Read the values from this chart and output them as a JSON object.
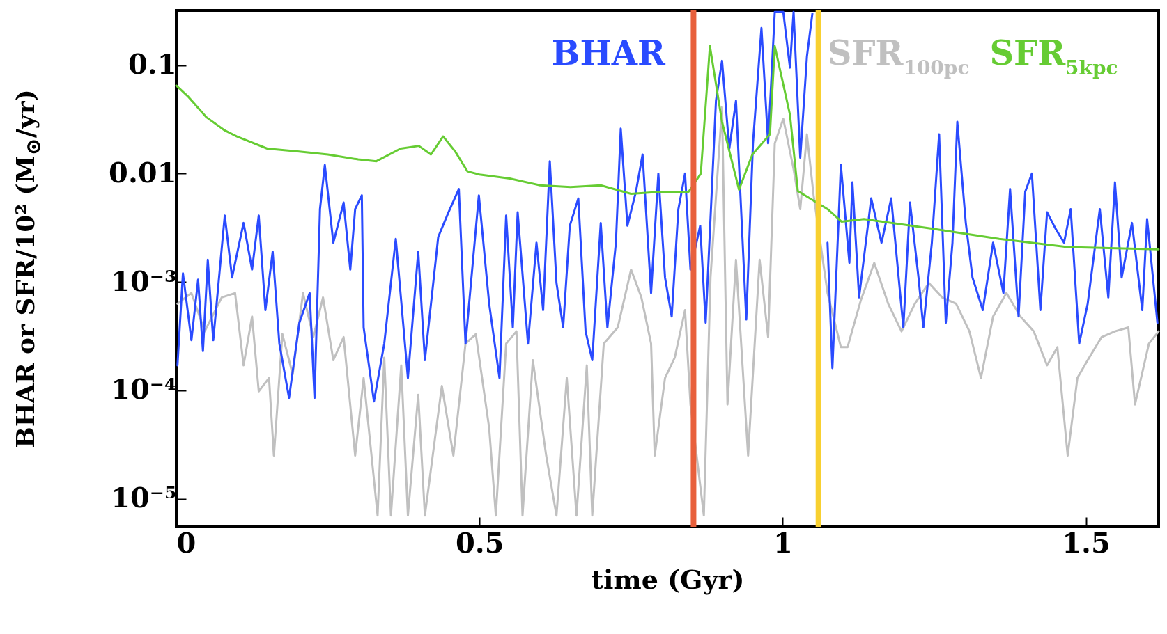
{
  "chart_data": {
    "type": "line",
    "xlabel": "time (Gyr)",
    "ylabel": "BHAR or SFR/10² (M$_{⊙}$/yr)",
    "log": "y",
    "xlim": [
      0,
      1.62
    ],
    "ylim": [
      5.5e-06,
      0.32
    ],
    "xticks": [
      0,
      0.5,
      1,
      1.5
    ],
    "yticks": [
      0.1,
      0.01,
      {
        "value": 0.001,
        "label": "10⁻³"
      },
      {
        "value": 0.0001,
        "label": "10⁻⁴"
      },
      {
        "value": 1e-05,
        "label": "10⁻⁵"
      }
    ],
    "series": [
      {
        "name": "SFR$_{100pc}$",
        "color": "#c0c0c0",
        "x": [
          0.002,
          0.025,
          0.047,
          0.075,
          0.097,
          0.111,
          0.125,
          0.136,
          0.153,
          0.161,
          0.175,
          0.192,
          0.209,
          0.226,
          0.242,
          0.259,
          0.276,
          0.295,
          0.309,
          0.332,
          0.343,
          0.354,
          0.371,
          0.382,
          0.399,
          0.41,
          0.438,
          0.457,
          0.477,
          0.494,
          0.516,
          0.527,
          0.544,
          0.561,
          0.571,
          0.588,
          0.61,
          0.627,
          0.644,
          0.66,
          0.677,
          0.686,
          0.705,
          0.728,
          0.75,
          0.767,
          0.783,
          0.789,
          0.806,
          0.822,
          0.839,
          0.848,
          0.87,
          0.881,
          0.9,
          0.909,
          0.923,
          0.943,
          0.962,
          0.976,
          0.987,
          1.001,
          1.018,
          1.029,
          1.04,
          1.051,
          1.074,
          1.096,
          1.107,
          1.129,
          1.151,
          1.174,
          1.196,
          1.218,
          1.241,
          1.263,
          1.286,
          1.308,
          1.327,
          1.347,
          1.369,
          1.392,
          1.414,
          1.436,
          1.453,
          1.47,
          1.486,
          1.503,
          1.526,
          1.548,
          1.57,
          1.581,
          1.604,
          1.62
        ],
        "values": [
          0.00063,
          0.00079,
          0.00035,
          0.00072,
          0.00079,
          0.00017,
          0.00048,
          9.8e-05,
          0.00013,
          2.5e-05,
          0.00033,
          0.00014,
          0.00079,
          0.00031,
          0.00072,
          0.00019,
          0.00031,
          2.5e-05,
          0.00013,
          7e-06,
          0.0002,
          7e-06,
          0.00017,
          7e-06,
          9.1e-05,
          7e-06,
          0.00011,
          2.5e-05,
          0.00027,
          0.00033,
          4.5e-05,
          7e-06,
          0.00027,
          0.00035,
          7e-06,
          0.00019,
          2.5e-05,
          7e-06,
          0.00013,
          7e-06,
          0.00017,
          7e-06,
          0.00027,
          0.00038,
          0.0013,
          0.00072,
          0.00027,
          2.5e-05,
          0.00013,
          0.0002,
          0.00055,
          7.4e-05,
          7e-06,
          0.0011,
          0.041,
          7.4e-05,
          0.0016,
          2.5e-05,
          0.0016,
          0.00031,
          0.019,
          0.032,
          0.011,
          0.0047,
          0.023,
          0.0063,
          0.00079,
          0.00025,
          0.00025,
          0.00068,
          0.0015,
          0.00063,
          0.00035,
          0.00063,
          0.00098,
          0.00072,
          0.00063,
          0.00035,
          0.00013,
          0.00048,
          0.00079,
          0.00048,
          0.00035,
          0.00017,
          0.00025,
          2.5e-05,
          0.00013,
          0.00019,
          0.00031,
          0.00035,
          0.00038,
          7.4e-05,
          0.00027,
          0.00035
        ]
      },
      {
        "name": "BHAR",
        "color": "#2a4bff",
        "x": [
          0.002,
          0.011,
          0.025,
          0.036,
          0.044,
          0.052,
          0.061,
          0.08,
          0.092,
          0.111,
          0.125,
          0.136,
          0.147,
          0.159,
          0.17,
          0.186,
          0.203,
          0.22,
          0.228,
          0.237,
          0.245,
          0.259,
          0.276,
          0.287,
          0.295,
          0.306,
          0.309,
          0.326,
          0.343,
          0.362,
          0.382,
          0.399,
          0.41,
          0.432,
          0.449,
          0.466,
          0.477,
          0.499,
          0.516,
          0.533,
          0.544,
          0.555,
          0.563,
          0.58,
          0.594,
          0.605,
          0.616,
          0.627,
          0.638,
          0.649,
          0.663,
          0.675,
          0.686,
          0.7,
          0.711,
          0.725,
          0.733,
          0.744,
          0.758,
          0.769,
          0.783,
          0.795,
          0.806,
          0.817,
          0.828,
          0.839,
          0.848,
          0.864,
          0.873,
          0.89,
          0.9,
          0.912,
          0.923,
          0.94,
          0.951,
          0.965,
          0.976,
          0.987,
          1.001,
          1.012,
          1.018,
          1.029,
          1.04,
          1.049,
          1.057,
          1.074,
          1.082,
          1.096,
          1.11,
          1.115,
          1.126,
          1.146,
          1.163,
          1.179,
          1.199,
          1.21,
          1.224,
          1.232,
          1.246,
          1.258,
          1.269,
          1.28,
          1.288,
          1.302,
          1.313,
          1.33,
          1.347,
          1.364,
          1.375,
          1.389,
          1.4,
          1.411,
          1.425,
          1.436,
          1.45,
          1.464,
          1.475,
          1.489,
          1.503,
          1.523,
          1.537,
          1.548,
          1.559,
          1.576,
          1.593,
          1.601,
          1.618
        ],
        "values": [
          0.00017,
          0.0012,
          0.00029,
          0.00105,
          0.00023,
          0.0016,
          0.00029,
          0.0041,
          0.0011,
          0.0035,
          0.0013,
          0.0041,
          0.00055,
          0.0019,
          0.00027,
          8.5e-05,
          0.00042,
          0.00079,
          8.5e-05,
          0.0047,
          0.012,
          0.0023,
          0.0054,
          0.0013,
          0.0047,
          0.0063,
          0.00038,
          7.9e-05,
          0.00027,
          0.0025,
          0.00013,
          0.0019,
          0.00019,
          0.0026,
          0.0044,
          0.0072,
          0.00027,
          0.0063,
          0.00063,
          0.00013,
          0.0041,
          0.00038,
          0.0044,
          0.00027,
          0.0023,
          0.00055,
          0.013,
          0.00098,
          0.00038,
          0.0033,
          0.0059,
          0.00035,
          0.00019,
          0.0035,
          0.00038,
          0.0023,
          0.026,
          0.0033,
          0.0068,
          0.015,
          0.00079,
          0.01,
          0.0011,
          0.00048,
          0.0047,
          0.01,
          0.0013,
          0.0033,
          0.00042,
          0.047,
          0.11,
          0.017,
          0.047,
          0.00045,
          0.019,
          0.22,
          0.019,
          0.31,
          0.31,
          0.095,
          0.31,
          0.014,
          0.12,
          0.3,
          null,
          0.0023,
          0.00016,
          0.012,
          0.0015,
          0.0083,
          0.00072,
          0.0059,
          0.0023,
          0.0059,
          0.00038,
          0.0054,
          0.0011,
          0.00038,
          0.0023,
          0.023,
          0.00042,
          0.0023,
          0.03,
          0.0035,
          0.0011,
          0.00055,
          0.0023,
          0.00079,
          0.0072,
          0.00048,
          0.0068,
          0.01,
          0.00055,
          0.0044,
          0.0031,
          0.0023,
          0.0047,
          0.00027,
          0.00063,
          0.0047,
          0.00072,
          0.0083,
          0.0011,
          0.0035,
          0.00055,
          0.0038,
          0.00042
        ]
      },
      {
        "name": "SFR$_{5kpc}$",
        "color": "#66cc33",
        "x": [
          0,
          0.02,
          0.05,
          0.08,
          0.1,
          0.15,
          0.2,
          0.25,
          0.3,
          0.33,
          0.37,
          0.4,
          0.42,
          0.44,
          0.46,
          0.48,
          0.5,
          0.55,
          0.6,
          0.65,
          0.7,
          0.75,
          0.8,
          0.845,
          0.865,
          0.88,
          0.9,
          0.928,
          0.95,
          0.979,
          0.987,
          1.012,
          1.025,
          1.074,
          1.097,
          1.134,
          1.246,
          1.357,
          1.469,
          1.62
        ],
        "values": [
          0.065,
          0.051,
          0.033,
          0.025,
          0.022,
          0.017,
          0.016,
          0.015,
          0.0135,
          0.013,
          0.017,
          0.018,
          0.015,
          0.022,
          0.016,
          0.0105,
          0.0098,
          0.009,
          0.0078,
          0.0075,
          0.0078,
          0.0065,
          0.0068,
          0.0068,
          0.01,
          0.15,
          0.03,
          0.0071,
          0.015,
          0.023,
          0.15,
          0.035,
          0.0069,
          0.0047,
          0.0036,
          0.0038,
          0.0031,
          0.0025,
          0.0021,
          0.002
        ]
      }
    ],
    "ref_lines": [
      {
        "axis": "x",
        "value": 0.853,
        "color": "#e8603c"
      },
      {
        "axis": "x",
        "value": 1.059,
        "color": "#f8d030"
      }
    ]
  }
}
